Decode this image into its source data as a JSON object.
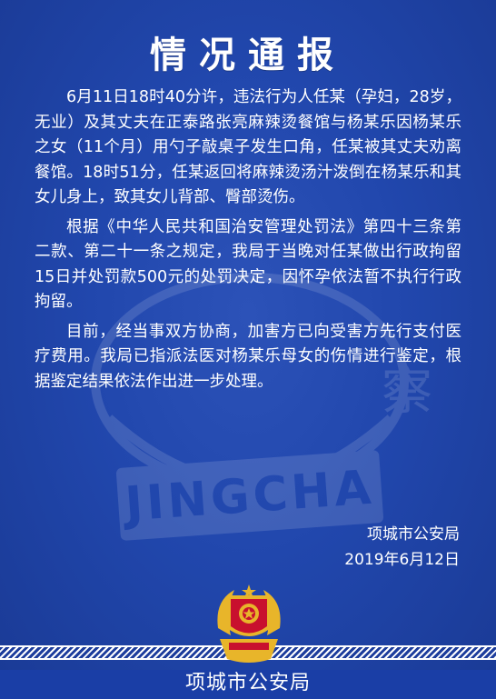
{
  "document": {
    "title": "情况通报",
    "paragraphs": [
      "6月11日18时40分许，违法行为人任某（孕妇，28岁，无业）及其丈夫在正泰路张亮麻辣烫餐馆与杨某乐因杨某乐之女（11个月）用勺子敲桌子发生口角，任某被其丈夫劝离餐馆。18时51分，任某返回将麻辣烫汤汁泼倒在杨某乐和其女儿身上，致其女儿背部、臀部烫伤。",
      "根据《中华人民共和国治安管理处罚法》第四十三条第二款、第二十一条之规定，我局于当晚对任某做出行政拘留15日并处罚款500元的处罚决定，因怀孕依法暂不执行行政拘留。",
      "目前，经当事双方协商，加害方已向受害方先行支付医疗费用。我局已指派法医对杨某乐母女的伤情进行鉴定，根据鉴定结果依法作出进一步处理。"
    ],
    "issuer": "项城市公安局",
    "date": "2019年6月12日"
  },
  "watermark": {
    "text": "JINGCHA",
    "side_char": "察"
  },
  "footer": {
    "label": "项城市公安局"
  },
  "colors": {
    "background": "#2147ad",
    "band": "#1a3ea6",
    "text": "#ffffff",
    "badge_red": "#c8102e",
    "badge_gold": "#e8b52a"
  }
}
